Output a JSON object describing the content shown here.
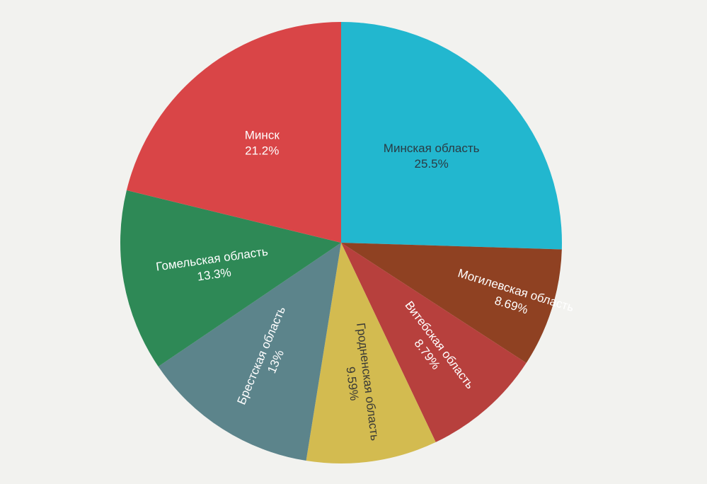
{
  "chart_data": {
    "type": "pie",
    "title": "",
    "start_angle_deg": 0,
    "direction": "clockwise",
    "slices": [
      {
        "label": "Минская область",
        "value": 25.5,
        "value_label": "25.5%",
        "color": "#22b7cf",
        "text_color": "#2a3b44",
        "label_angle_deg": 0
      },
      {
        "label": "Могилевская область",
        "value": 8.69,
        "value_label": "8.69%",
        "color": "#8f4122",
        "text_color": "#ffffff",
        "label_angle_deg": 17
      },
      {
        "label": "Витебская область",
        "value": 8.79,
        "value_label": "8.79%",
        "color": "#b7403d",
        "text_color": "#ffffff",
        "label_angle_deg": 53
      },
      {
        "label": "Гродненская область",
        "value": 9.59,
        "value_label": "9.59%",
        "color": "#d3bb50",
        "text_color": "#3a3a36",
        "label_angle_deg": 83
      },
      {
        "label": "Брестская область",
        "value": 13,
        "value_label": "13%",
        "color": "#5c848b",
        "text_color": "#ffffff",
        "label_angle_deg": -67
      },
      {
        "label": "Гомельская область",
        "value": 13.3,
        "value_label": "13.3%",
        "color": "#2e8956",
        "text_color": "#ffffff",
        "label_angle_deg": -8
      },
      {
        "label": "Минск",
        "value": 21.2,
        "value_label": "21.2%",
        "color": "#d94547",
        "text_color": "#ffffff",
        "label_angle_deg": 0
      }
    ]
  }
}
